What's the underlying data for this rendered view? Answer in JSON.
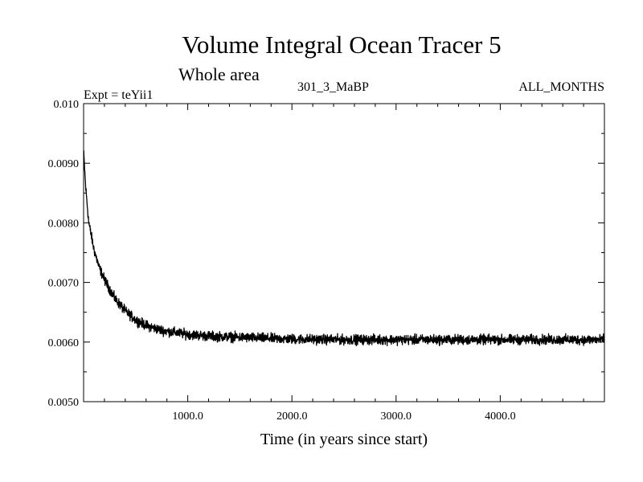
{
  "chart_data": {
    "type": "line",
    "title": "Volume Integral Ocean Tracer 5",
    "subtitle": "Whole area",
    "header_left": "Expt = teYii1",
    "header_mid": "301_3_MaBP",
    "header_right": "ALL_MONTHS",
    "xlabel": "Time (in years since start)",
    "ylabel": "",
    "xlim": [
      0,
      5000
    ],
    "ylim": [
      0.005,
      0.01
    ],
    "x_ticks": [
      1000,
      2000,
      3000,
      4000
    ],
    "x_tick_labels": [
      "1000.0",
      "2000.0",
      "3000.0",
      "4000.0"
    ],
    "y_ticks": [
      0.005,
      0.006,
      0.007,
      0.008,
      0.009,
      0.01
    ],
    "y_tick_labels": [
      "0.0050",
      "0.0060",
      "0.0070",
      "0.0080",
      "0.0090",
      "0.010"
    ],
    "series": [
      {
        "color": "#000000",
        "x": [
          0,
          20,
          50,
          100,
          150,
          200,
          300,
          400,
          500,
          600,
          700,
          800,
          1000,
          1200,
          1500,
          1800,
          2000,
          2500,
          3000,
          3500,
          4000,
          4500,
          5000
        ],
        "y": [
          0.0092,
          0.0086,
          0.008,
          0.00755,
          0.00725,
          0.00705,
          0.00673,
          0.00652,
          0.00637,
          0.00628,
          0.00622,
          0.00618,
          0.00613,
          0.0061,
          0.00608,
          0.00606,
          0.00605,
          0.00604,
          0.00604,
          0.00604,
          0.00604,
          0.00604,
          0.00604
        ],
        "noise_amplitude": 8e-05
      }
    ]
  }
}
